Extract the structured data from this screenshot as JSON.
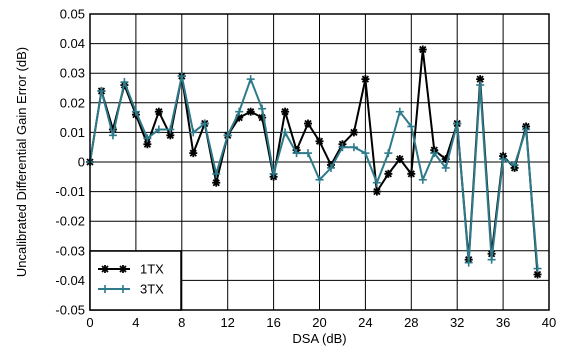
{
  "chart_data": {
    "type": "line",
    "xlabel": "DSA (dB)",
    "ylabel": "Uncalibrated Differential Gain Error (dB)",
    "xlim": [
      0,
      40
    ],
    "ylim": [
      -0.05,
      0.05
    ],
    "xticks": [
      0,
      4,
      8,
      12,
      16,
      20,
      24,
      28,
      32,
      36,
      40
    ],
    "yticks": [
      0.05,
      0.04,
      0.03,
      0.02,
      0.01,
      0,
      -0.01,
      -0.02,
      -0.03,
      -0.04,
      -0.05
    ],
    "grid": true,
    "legend_position": "bottom-left",
    "x": [
      0,
      1,
      2,
      3,
      4,
      5,
      6,
      7,
      8,
      9,
      10,
      11,
      12,
      13,
      14,
      15,
      16,
      17,
      18,
      19,
      20,
      21,
      22,
      23,
      24,
      25,
      26,
      27,
      28,
      29,
      30,
      31,
      32,
      33,
      34,
      35,
      36,
      37,
      38,
      39
    ],
    "series": [
      {
        "name": "1TX",
        "color": "#000000",
        "marker": "asterisk",
        "values": [
          0,
          0.024,
          0.011,
          0.026,
          0.016,
          0.006,
          0.017,
          0.009,
          0.029,
          0.003,
          0.013,
          -0.007,
          0.009,
          0.015,
          0.017,
          0.015,
          -0.005,
          0.017,
          0.004,
          0.013,
          0.007,
          -0.001,
          0.006,
          0.01,
          0.028,
          -0.01,
          -0.004,
          0.001,
          -0.004,
          0.038,
          0.004,
          0.001,
          0.013,
          -0.033,
          0.028,
          -0.031,
          0.002,
          -0.002,
          0.012,
          -0.038
        ]
      },
      {
        "name": "3TX",
        "color": "#2e7a8a",
        "marker": "plus",
        "values": [
          0,
          0.024,
          0.009,
          0.027,
          0.017,
          0.008,
          0.011,
          0.011,
          0.029,
          0.01,
          0.013,
          -0.004,
          0.009,
          0.017,
          0.028,
          0.018,
          -0.004,
          0.01,
          0.003,
          0.003,
          -0.006,
          -0.002,
          0.005,
          0.005,
          0.003,
          -0.007,
          0.003,
          0.017,
          0.012,
          -0.006,
          0.003,
          -0.002,
          0.013,
          -0.034,
          0.026,
          -0.033,
          0.001,
          -0.001,
          0.011,
          -0.036
        ]
      }
    ]
  }
}
